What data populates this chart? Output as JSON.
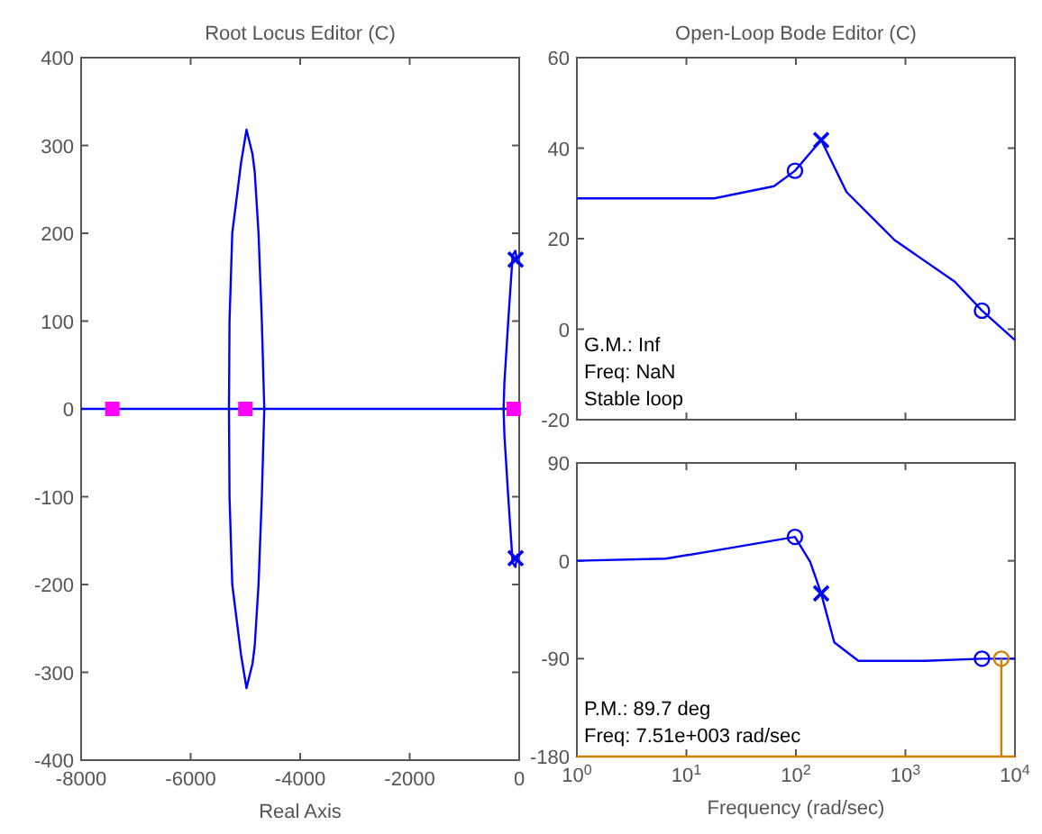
{
  "chart_data": [
    {
      "type": "line",
      "title": "Root Locus Editor (C)",
      "xlabel": "Real Axis",
      "xlim": [
        -8000,
        0
      ],
      "xticks": [
        -8000,
        -6000,
        -4000,
        -2000,
        0
      ],
      "ylim": [
        -400,
        400
      ],
      "yticks": [
        -400,
        -300,
        -200,
        -100,
        0,
        100,
        200,
        300,
        400
      ],
      "grid": false,
      "series": [
        {
          "color": "#0000ff",
          "x": [
            -8000,
            0
          ],
          "values": [
            0,
            0
          ]
        },
        {
          "type": "line",
          "color": "#0000ff",
          "x": [
            -5300,
            -5290,
            -5240,
            -5080,
            -4980,
            -4870,
            -4830,
            -4760,
            -4700,
            -4655,
            null,
            -4655,
            -4700,
            -4760,
            -4830,
            -4870,
            -4980,
            -5080,
            -5240,
            -5290,
            -5300
          ],
          "values": [
            0,
            100,
            200,
            280,
            318,
            290,
            270,
            200,
            100,
            0,
            null,
            0,
            -100,
            -200,
            -270,
            -290,
            -318,
            -280,
            -200,
            -100,
            0
          ]
        },
        {
          "type": "line",
          "color": "#0000ff",
          "x": [
            -285,
            -270,
            -200,
            -120,
            -70,
            -30,
            null,
            -30,
            -70,
            -120,
            -200,
            -270,
            -285
          ],
          "values": [
            0,
            30,
            100,
            175,
            180,
            165,
            null,
            -165,
            -180,
            -175,
            -100,
            -30,
            0
          ]
        },
        {
          "type": "scatter",
          "marker": "cross",
          "color": "#0000ff",
          "x": [
            -66,
            -66
          ],
          "values": [
            170,
            -170
          ]
        },
        {
          "type": "scatter",
          "marker": "square",
          "color": "#ff00ff",
          "x": [
            -7430,
            -5000,
            -100
          ],
          "values": [
            0,
            0,
            0
          ]
        }
      ]
    },
    {
      "type": "line",
      "title": "Open-Loop Bode Editor (C)",
      "log": "x",
      "xlim": [
        1,
        10000
      ],
      "xticks": [
        {
          "value": 1,
          "label": null
        },
        {
          "value": 10,
          "label": null
        },
        {
          "value": 100,
          "label": null
        },
        {
          "value": 1000,
          "label": null
        },
        {
          "value": 10000,
          "label": null
        }
      ],
      "ylim": [
        -20,
        60
      ],
      "yticks": [
        -20,
        0,
        20,
        40,
        60
      ],
      "tick_labels": "y",
      "grid": false,
      "annotations": [
        "G.M.: Inf",
        "Freq: NaN",
        "Stable loop"
      ],
      "series": [
        {
          "color": "#0000ff",
          "x": [
            1,
            17.9,
            63,
            98,
            170,
            290,
            795,
            2820,
            5000,
            10000
          ],
          "values": [
            28.9,
            28.9,
            31.6,
            35,
            41.8,
            30.3,
            19.7,
            10.5,
            4.1,
            -2.4
          ]
        },
        {
          "type": "scatter",
          "marker": "circle",
          "color": "#0000ff",
          "x": [
            98,
            5000
          ],
          "values": [
            35,
            4.1
          ]
        },
        {
          "type": "scatter",
          "marker": "cross",
          "color": "#0000ff",
          "x": [
            170
          ],
          "values": [
            41.8
          ]
        }
      ]
    },
    {
      "type": "line",
      "xlabel": "Frequency (rad/sec)",
      "log": "x",
      "xlim": [
        1,
        10000
      ],
      "xticks": [
        {
          "value": 1,
          "label": "10$^{0}$"
        },
        {
          "value": 10,
          "label": "10$^{1}$"
        },
        {
          "value": 100,
          "label": "10$^{2}$"
        },
        {
          "value": 1000,
          "label": "10$^{3}$"
        },
        {
          "value": 10000,
          "label": "10$^{4}$"
        }
      ],
      "ylim": [
        -180,
        90
      ],
      "yticks": [
        -180,
        -90,
        0,
        90
      ],
      "grid": false,
      "annotations": [
        "P.M.: 89.7 deg",
        "Freq: 7.51e+003 rad/sec"
      ],
      "series": [
        {
          "color": "#0000ff",
          "x": [
            1,
            6.5,
            26,
            98,
            135,
            170,
            224,
            372,
            1510,
            5000,
            10000
          ],
          "values": [
            0,
            2,
            12,
            22,
            -1,
            -30,
            -75,
            -92,
            -92,
            -90,
            -90
          ]
        },
        {
          "type": "scatter",
          "marker": "circle",
          "color": "#0000ff",
          "x": [
            98,
            5000
          ],
          "values": [
            22,
            -90
          ]
        },
        {
          "type": "scatter",
          "marker": "cross",
          "color": "#0000ff",
          "x": [
            170
          ],
          "values": [
            -30
          ]
        },
        {
          "color": "#d08000",
          "x": [
            1,
            10000
          ],
          "values": [
            -180,
            -180
          ]
        },
        {
          "color": "#d08000",
          "x": [
            7510,
            7510
          ],
          "values": [
            -180,
            -90
          ]
        },
        {
          "type": "scatter",
          "marker": "circle",
          "color": "#d08000",
          "x": [
            7510
          ],
          "values": [
            -90
          ]
        }
      ]
    }
  ]
}
